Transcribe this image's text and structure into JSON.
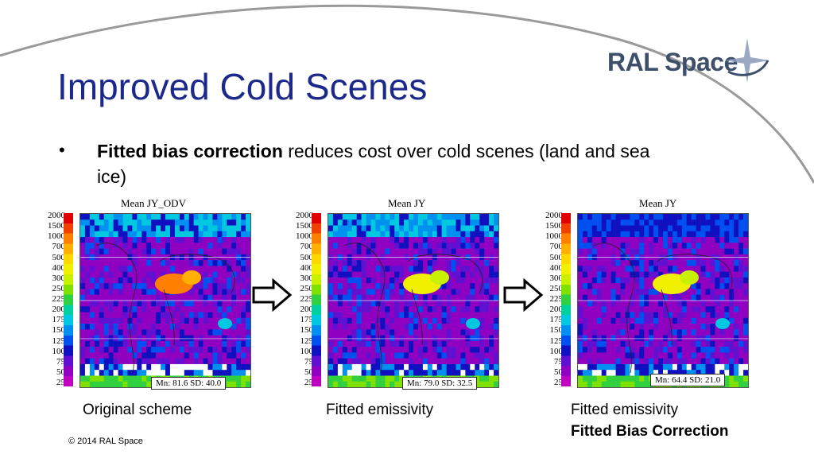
{
  "slide": {
    "title": "Improved Cold Scenes",
    "bullet_bold": "Fitted bias correction",
    "bullet_rest": " reduces cost over cold scenes (land and sea ice)",
    "copyright": "© 2014 RAL Space"
  },
  "logo": {
    "text": "RAL Space",
    "icon": "star-icon"
  },
  "colorbar": {
    "ticks": [
      "2000",
      "1500",
      "1000",
      "700",
      "500",
      "400",
      "300",
      "250",
      "225",
      "200",
      "175",
      "150",
      "125",
      "100",
      "75",
      "50",
      "25"
    ],
    "colors": [
      "#e00000",
      "#f04000",
      "#ff8000",
      "#ffb000",
      "#ffd800",
      "#f0f000",
      "#c8f000",
      "#80e000",
      "#30d040",
      "#00d0a0",
      "#00c8e0",
      "#0090f0",
      "#0050f0",
      "#1010c0",
      "#6010d0",
      "#9000c0",
      "#c000c0"
    ]
  },
  "panels": [
    {
      "title": "Mean JY_ODV",
      "stats": "Mn: 81.6 SD: 40.0",
      "caption": "Original scheme",
      "caption_bold": ""
    },
    {
      "title": "Mean JY",
      "stats": "Mn: 79.0 SD: 32.5",
      "caption": "Fitted emissivity",
      "caption_bold": ""
    },
    {
      "title": "Mean JY",
      "stats": "Mn: 64.4 SD: 21.0",
      "caption": "Fitted emissivity",
      "caption_bold": "Fitted Bias Correction"
    }
  ]
}
